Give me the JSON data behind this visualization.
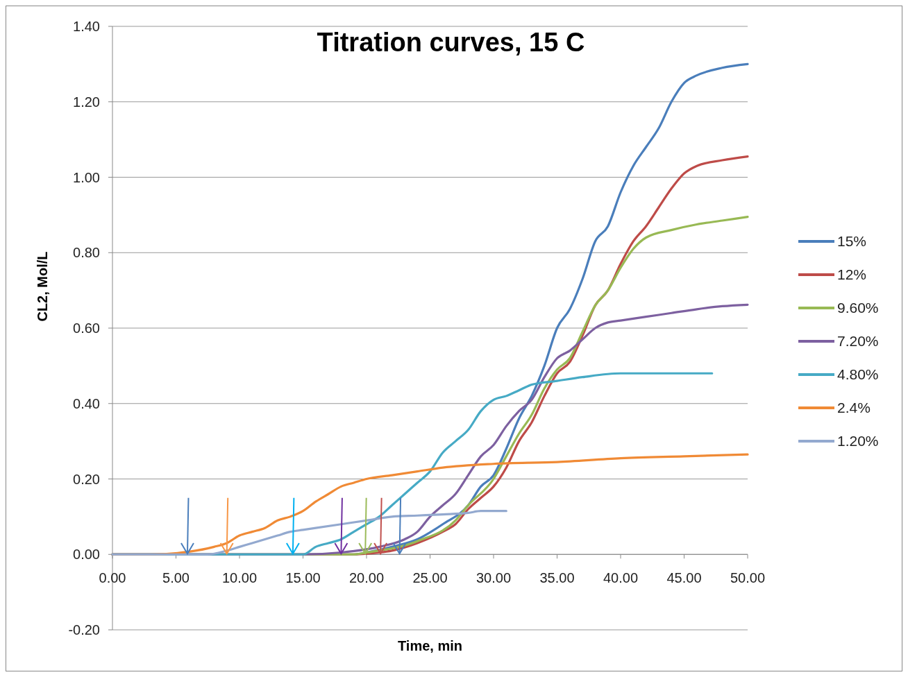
{
  "chart_data": {
    "type": "line",
    "title": "Titration curves, 15 C",
    "xlabel": "Time, min",
    "ylabel": "CL2, Mol/L",
    "xlim": [
      0,
      50
    ],
    "xticks": [
      {
        "value": 0,
        "label": "0.00"
      },
      {
        "value": 5,
        "label": "5.00"
      },
      {
        "value": 10,
        "label": "10.00"
      },
      {
        "value": 15,
        "label": "15.00"
      },
      {
        "value": 20,
        "label": "20.00"
      },
      {
        "value": 25,
        "label": "25.00"
      },
      {
        "value": 30,
        "label": "30.00"
      },
      {
        "value": 35,
        "label": "35.00"
      },
      {
        "value": 40,
        "label": "40.00"
      },
      {
        "value": 45,
        "label": "45.00"
      },
      {
        "value": 50,
        "label": "50.00"
      }
    ],
    "ylim": [
      -0.2,
      1.4
    ],
    "yticks": [
      {
        "value": -0.2,
        "label": "-0.20"
      },
      {
        "value": 0,
        "label": "0.00"
      },
      {
        "value": 0.2,
        "label": "0.20"
      },
      {
        "value": 0.4,
        "label": "0.40"
      },
      {
        "value": 0.6,
        "label": "0.60"
      },
      {
        "value": 0.8,
        "label": "0.80"
      },
      {
        "value": 1,
        "label": "1.00"
      },
      {
        "value": 1.2,
        "label": "1.20"
      },
      {
        "value": 1.4,
        "label": "1.40"
      }
    ],
    "grid": "y",
    "legend": "right",
    "marker": "none",
    "line_style": "solid",
    "series": [
      {
        "name": "15%",
        "color": "#4a7ebb",
        "x": [
          0,
          19,
          20,
          22,
          24,
          26,
          28,
          29,
          30,
          31,
          32,
          33,
          34,
          35,
          36,
          37,
          38,
          39,
          40,
          41,
          42,
          43,
          44,
          45,
          46,
          48,
          50
        ],
        "values": [
          0,
          0,
          0.005,
          0.02,
          0.04,
          0.08,
          0.13,
          0.18,
          0.21,
          0.28,
          0.36,
          0.42,
          0.5,
          0.6,
          0.65,
          0.73,
          0.83,
          0.87,
          0.96,
          1.03,
          1.08,
          1.13,
          1.2,
          1.25,
          1.27,
          1.29,
          1.3
        ]
      },
      {
        "name": "12%",
        "color": "#be4b48",
        "x": [
          0,
          19,
          21,
          22,
          24,
          26,
          27,
          28,
          29,
          30,
          31,
          32,
          33,
          34,
          35,
          36,
          37,
          38,
          39,
          40,
          41,
          42,
          43,
          44,
          45,
          46,
          48,
          50
        ],
        "values": [
          0,
          0,
          0.005,
          0.01,
          0.03,
          0.06,
          0.08,
          0.12,
          0.15,
          0.18,
          0.23,
          0.3,
          0.35,
          0.42,
          0.48,
          0.51,
          0.58,
          0.66,
          0.7,
          0.77,
          0.83,
          0.87,
          0.92,
          0.97,
          1.01,
          1.03,
          1.045,
          1.055
        ]
      },
      {
        "name": "9.60%",
        "color": "#98b954",
        "x": [
          0,
          19,
          20,
          24,
          27,
          28,
          30,
          31,
          32,
          33,
          34,
          35,
          36,
          37,
          38,
          39,
          40,
          41,
          42,
          44,
          46,
          48,
          50
        ],
        "values": [
          0,
          0,
          0.005,
          0.035,
          0.09,
          0.13,
          0.2,
          0.26,
          0.32,
          0.37,
          0.44,
          0.49,
          0.52,
          0.59,
          0.66,
          0.7,
          0.76,
          0.81,
          0.84,
          0.86,
          0.875,
          0.885,
          0.895
        ]
      },
      {
        "name": "7.20%",
        "color": "#7d60a0",
        "x": [
          0,
          15,
          18,
          21,
          23,
          24,
          25,
          26,
          27,
          28,
          29,
          30,
          31,
          32,
          33,
          34,
          35,
          36,
          37,
          38,
          39,
          40,
          42,
          44,
          46,
          48,
          50
        ],
        "values": [
          0,
          0,
          0.005,
          0.02,
          0.04,
          0.06,
          0.1,
          0.13,
          0.16,
          0.21,
          0.26,
          0.29,
          0.34,
          0.38,
          0.41,
          0.47,
          0.52,
          0.54,
          0.57,
          0.6,
          0.615,
          0.62,
          0.63,
          0.64,
          0.65,
          0.658,
          0.662
        ]
      },
      {
        "name": "4.80%",
        "color": "#46aac5",
        "x": [
          0,
          15,
          16,
          17,
          18,
          19,
          20,
          21,
          22,
          23,
          24,
          25,
          26,
          27,
          28,
          29,
          30,
          31,
          32,
          33,
          35,
          37,
          40,
          43,
          47.2
        ],
        "values": [
          0,
          0,
          0.02,
          0.03,
          0.04,
          0.06,
          0.08,
          0.1,
          0.13,
          0.16,
          0.19,
          0.22,
          0.27,
          0.3,
          0.33,
          0.38,
          0.41,
          0.42,
          0.435,
          0.45,
          0.46,
          0.47,
          0.48,
          0.48,
          0.48
        ]
      },
      {
        "name": "2.4%",
        "color": "#f08a35",
        "x": [
          0,
          3,
          6,
          8,
          9,
          10,
          11,
          12,
          13,
          14,
          15,
          16,
          17,
          18,
          19,
          20,
          22,
          24,
          26,
          30,
          35,
          40,
          45,
          50
        ],
        "values": [
          0,
          0,
          0.007,
          0.02,
          0.03,
          0.05,
          0.06,
          0.07,
          0.09,
          0.1,
          0.115,
          0.14,
          0.16,
          0.18,
          0.19,
          0.2,
          0.21,
          0.22,
          0.23,
          0.24,
          0.245,
          0.255,
          0.26,
          0.265
        ]
      },
      {
        "name": "1.20%",
        "color": "#93a9cf",
        "x": [
          0,
          7.5,
          9,
          10,
          11,
          12,
          13,
          14,
          15,
          16,
          18,
          20,
          22,
          24,
          26,
          28,
          29,
          30,
          31
        ],
        "values": [
          0,
          0,
          0.01,
          0.02,
          0.03,
          0.04,
          0.05,
          0.06,
          0.065,
          0.07,
          0.08,
          0.09,
          0.1,
          0.103,
          0.106,
          0.11,
          0.115,
          0.115,
          0.115
        ]
      }
    ]
  }
}
